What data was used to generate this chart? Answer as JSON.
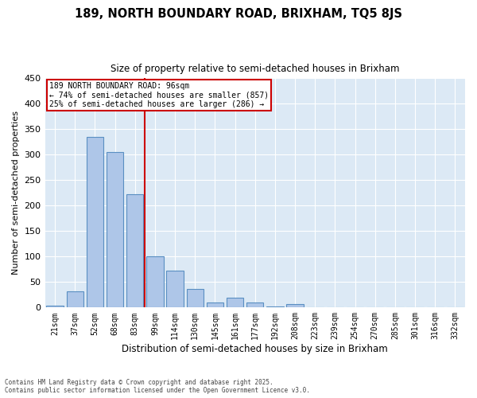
{
  "title": "189, NORTH BOUNDARY ROAD, BRIXHAM, TQ5 8JS",
  "subtitle": "Size of property relative to semi-detached houses in Brixham",
  "xlabel": "Distribution of semi-detached houses by size in Brixham",
  "ylabel": "Number of semi-detached properties",
  "categories": [
    "21sqm",
    "37sqm",
    "52sqm",
    "68sqm",
    "83sqm",
    "99sqm",
    "114sqm",
    "130sqm",
    "145sqm",
    "161sqm",
    "177sqm",
    "192sqm",
    "208sqm",
    "223sqm",
    "239sqm",
    "254sqm",
    "270sqm",
    "285sqm",
    "301sqm",
    "316sqm",
    "332sqm"
  ],
  "values": [
    4,
    31,
    335,
    305,
    222,
    101,
    73,
    36,
    10,
    19,
    10,
    2,
    6,
    0,
    0,
    0,
    0,
    1,
    0,
    0,
    0
  ],
  "bar_color": "#aec6e8",
  "bar_edge_color": "#5a8fc2",
  "vline_color": "#cc0000",
  "vline_x_index": 4.5,
  "annotation_title": "189 NORTH BOUNDARY ROAD: 96sqm",
  "annotation_line1": "← 74% of semi-detached houses are smaller (857)",
  "annotation_line2": "25% of semi-detached houses are larger (286) →",
  "annotation_box_color": "#cc0000",
  "ylim": [
    0,
    450
  ],
  "yticks": [
    0,
    50,
    100,
    150,
    200,
    250,
    300,
    350,
    400,
    450
  ],
  "background_color": "#dce9f5",
  "fig_background_color": "#ffffff",
  "footer_line1": "Contains HM Land Registry data © Crown copyright and database right 2025.",
  "footer_line2": "Contains public sector information licensed under the Open Government Licence v3.0."
}
